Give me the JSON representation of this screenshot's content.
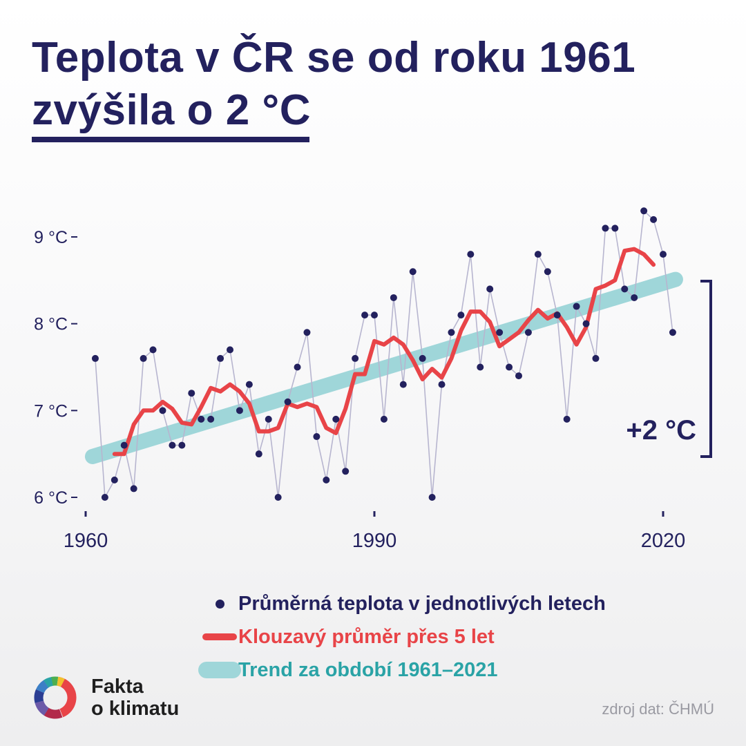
{
  "title": {
    "line1": "Teplota v ČR se od roku 1961",
    "line2": "zvýšila o 2 °C"
  },
  "chart_data": {
    "type": "line",
    "title": "Teplota v ČR se od roku 1961 zvýšila o 2 °C",
    "xlabel": "",
    "ylabel": "",
    "xlim": [
      1960,
      2022
    ],
    "ylim": [
      6,
      9.4
    ],
    "x_ticks": [
      1960,
      1990,
      2020
    ],
    "x_tick_labels": [
      "1960",
      "1990",
      "2020"
    ],
    "y_ticks": [
      6,
      7,
      8,
      9
    ],
    "y_tick_labels": [
      "6 °C",
      "7 °C",
      "8 °C",
      "9 °C"
    ],
    "grid": false,
    "legend_position": "bottom",
    "series": [
      {
        "name": "Průměrná teplota v jednotlivých letech",
        "kind": "points-with-line",
        "color": "#23215e",
        "x": [
          1961,
          1962,
          1963,
          1964,
          1965,
          1966,
          1967,
          1968,
          1969,
          1970,
          1971,
          1972,
          1973,
          1974,
          1975,
          1976,
          1977,
          1978,
          1979,
          1980,
          1981,
          1982,
          1983,
          1984,
          1985,
          1986,
          1987,
          1988,
          1989,
          1990,
          1991,
          1992,
          1993,
          1994,
          1995,
          1996,
          1997,
          1998,
          1999,
          2000,
          2001,
          2002,
          2003,
          2004,
          2005,
          2006,
          2007,
          2008,
          2009,
          2010,
          2011,
          2012,
          2013,
          2014,
          2015,
          2016,
          2017,
          2018,
          2019,
          2020,
          2021
        ],
        "values": [
          7.6,
          6.0,
          6.2,
          6.6,
          6.1,
          7.6,
          7.7,
          7.0,
          6.6,
          6.6,
          7.2,
          6.9,
          6.9,
          7.6,
          7.7,
          7.0,
          7.3,
          6.5,
          6.9,
          6.0,
          7.1,
          7.5,
          7.9,
          6.7,
          6.2,
          6.9,
          6.3,
          7.6,
          8.1,
          8.1,
          6.9,
          8.3,
          7.3,
          8.6,
          7.6,
          6.0,
          7.3,
          7.9,
          8.1,
          8.8,
          7.5,
          8.4,
          7.9,
          7.5,
          7.4,
          7.9,
          8.8,
          8.6,
          8.1,
          6.9,
          8.2,
          8.0,
          7.6,
          9.1,
          9.1,
          8.4,
          8.3,
          9.3,
          9.2,
          8.8,
          7.9
        ]
      },
      {
        "name": "Klouzavý průměr přes 5 let",
        "kind": "line",
        "color": "#e84448",
        "x": [
          1963,
          1964,
          1965,
          1966,
          1967,
          1968,
          1969,
          1970,
          1971,
          1972,
          1973,
          1974,
          1975,
          1976,
          1977,
          1978,
          1979,
          1980,
          1981,
          1982,
          1983,
          1984,
          1985,
          1986,
          1987,
          1988,
          1989,
          1990,
          1991,
          1992,
          1993,
          1994,
          1995,
          1996,
          1997,
          1998,
          1999,
          2000,
          2001,
          2002,
          2003,
          2004,
          2005,
          2006,
          2007,
          2008,
          2009,
          2010,
          2011,
          2012,
          2013,
          2014,
          2015,
          2016,
          2017,
          2018,
          2019
        ],
        "values": [
          6.5,
          6.5,
          6.84,
          7.0,
          7.0,
          7.1,
          7.02,
          6.86,
          6.84,
          7.04,
          7.26,
          7.22,
          7.3,
          7.22,
          7.08,
          6.76,
          6.76,
          6.8,
          7.08,
          7.04,
          7.08,
          7.04,
          6.8,
          6.74,
          7.02,
          7.42,
          7.42,
          7.8,
          7.76,
          7.84,
          7.76,
          7.58,
          7.36,
          7.48,
          7.38,
          7.6,
          7.92,
          8.14,
          8.14,
          8.02,
          7.74,
          7.82,
          7.9,
          8.04,
          8.16,
          8.06,
          8.12,
          7.96,
          7.76,
          7.96,
          8.4,
          8.44,
          8.5,
          8.84,
          8.86,
          8.8,
          8.68
        ]
      },
      {
        "name": "Trend za období 1961–2021",
        "kind": "trend",
        "color": "#9fd6d9",
        "x": [
          1961,
          2021
        ],
        "values": [
          6.47,
          8.51
        ]
      }
    ],
    "annotations": [
      {
        "text": "+2 °C",
        "from": 6.5,
        "to": 8.5
      }
    ]
  },
  "legend": {
    "items": [
      {
        "label": "Průměrná teplota v jednotlivých letech",
        "color": "#23215e"
      },
      {
        "label": "Klouzavý průměr přes 5 let",
        "color": "#e84448"
      },
      {
        "label": "Trend za období 1961–2021",
        "color": "#2aa3a6"
      }
    ]
  },
  "logo": {
    "line1": "Fakta",
    "line2": "o klimatu"
  },
  "source": "zdroj dat: ČHMÚ"
}
